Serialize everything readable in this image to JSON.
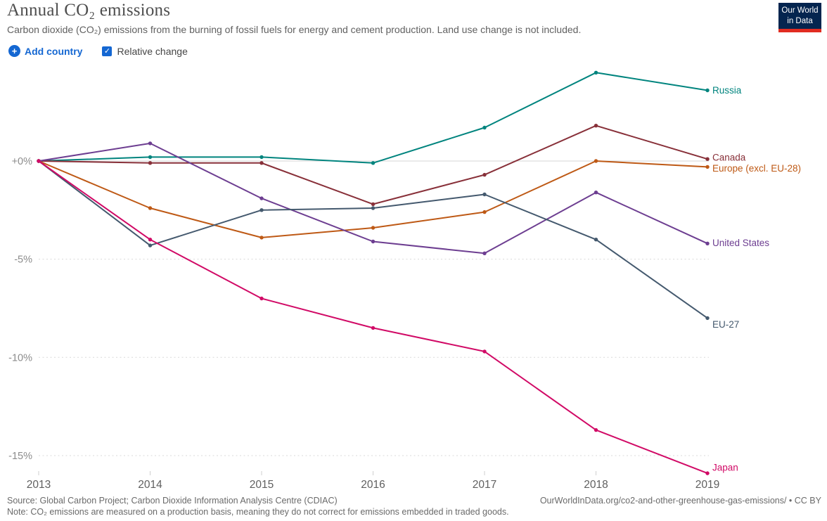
{
  "header": {
    "title": "Annual CO₂ emissions",
    "subtitle": "Carbon dioxide (CO₂) emissions from the burning of fossil fuels for energy and cement production. Land use change is not included.",
    "logo": {
      "line1": "Our World",
      "line2": "in Data",
      "bg_color": "#04254f",
      "bar_color": "#e12c21"
    }
  },
  "controls": {
    "add_country_label": "Add country",
    "plus_icon": "+",
    "relative_change_label": "Relative change",
    "relative_change_checked": true,
    "check_glyph": "✓",
    "accent_color": "#1467d2"
  },
  "chart_data": {
    "type": "line",
    "title": "Annual CO₂ emissions (relative change)",
    "x": [
      "2013",
      "2014",
      "2015",
      "2016",
      "2017",
      "2018",
      "2019"
    ],
    "unit": "%",
    "yticks": [
      "+0%",
      "-5%",
      "-10%",
      "-15%"
    ],
    "ytick_values": [
      0,
      -5,
      -10,
      -15
    ],
    "ylim": [
      -16.5,
      5
    ],
    "grid": true,
    "legend_position": "right-end-labels",
    "series": [
      {
        "name": "Russia",
        "color": "#00847e",
        "values": [
          0,
          0.2,
          0.2,
          -0.1,
          1.7,
          4.5,
          3.6
        ]
      },
      {
        "name": "Canada",
        "color": "#883039",
        "values": [
          0,
          -0.1,
          -0.1,
          -2.2,
          -0.7,
          1.8,
          0.1
        ]
      },
      {
        "name": "Europe (excl. EU-28)",
        "color": "#be5915",
        "values": [
          0,
          -2.4,
          -3.9,
          -3.4,
          -2.6,
          0.0,
          -0.3
        ]
      },
      {
        "name": "United States",
        "color": "#6d3e91",
        "values": [
          0,
          0.9,
          -1.9,
          -4.1,
          -4.7,
          -1.6,
          -4.2
        ]
      },
      {
        "name": "EU-27",
        "color": "#44596e",
        "values": [
          0,
          -4.3,
          -2.5,
          -2.4,
          -1.7,
          -4.0,
          -8.0
        ]
      },
      {
        "name": "Japan",
        "color": "#d10a66",
        "values": [
          0,
          -4.0,
          -7.0,
          -8.5,
          -9.7,
          -13.7,
          -15.9
        ]
      }
    ]
  },
  "footer": {
    "source": "Source: Global Carbon Project; Carbon Dioxide Information Analysis Centre (CDIAC)",
    "note": "Note: CO₂ emissions are measured on a production basis, meaning they do not correct for emissions embedded in traded goods.",
    "link": "OurWorldInData.org/co2-and-other-greenhouse-gas-emissions/ • CC BY"
  }
}
